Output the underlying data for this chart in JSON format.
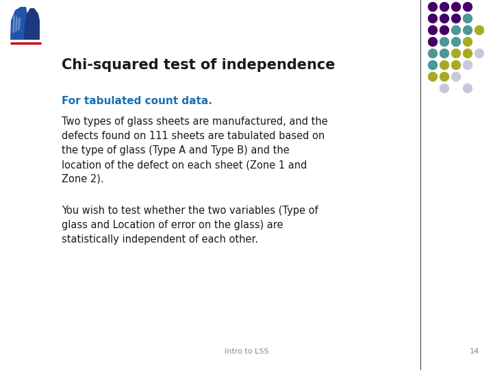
{
  "title": "Chi-squared test of independence",
  "subtitle": "For tabulated count data.",
  "body1_lines": [
    "Two types of glass sheets are manufactured, and the",
    "defects found on 111 sheets are tabulated based on",
    "the type of glass (Type A and Type B) and the",
    "location of the defect on each sheet (Zone 1 and",
    "Zone 2)."
  ],
  "body2_lines": [
    "You wish to test whether the two variables (Type of",
    "glass and Location of error on the glass) are",
    "statistically independent of each other."
  ],
  "footer": "Intro to LSS",
  "page_number": "14",
  "background_color": "#ffffff",
  "title_color": "#1a1a1a",
  "subtitle_color": "#1a6faf",
  "body_color": "#1a1a1a",
  "footer_color": "#888888",
  "title_fontsize": 15,
  "subtitle_fontsize": 11,
  "body_fontsize": 10.5,
  "footer_fontsize": 8,
  "dot_colors": {
    "purple": "#440066",
    "teal": "#4a9898",
    "yellow_green": "#aaaa22",
    "light_gray": "#c8c8dd"
  },
  "line_color": "#cc0000",
  "vertical_line_color": "#444444",
  "dot_grid": [
    [
      "purple",
      "purple",
      "purple",
      "purple",
      null
    ],
    [
      "purple",
      "purple",
      "purple",
      "teal",
      null
    ],
    [
      "purple",
      "purple",
      "teal",
      "teal",
      "yellow_green"
    ],
    [
      "purple",
      "teal",
      "teal",
      "yellow_green",
      null
    ],
    [
      "teal",
      "teal",
      "yellow_green",
      "yellow_green",
      "light_gray"
    ],
    [
      "teal",
      "yellow_green",
      "yellow_green",
      "light_gray",
      null
    ],
    [
      "yellow_green",
      "yellow_green",
      "light_gray",
      null,
      null
    ],
    [
      null,
      "light_gray",
      null,
      "light_gray",
      null
    ]
  ]
}
